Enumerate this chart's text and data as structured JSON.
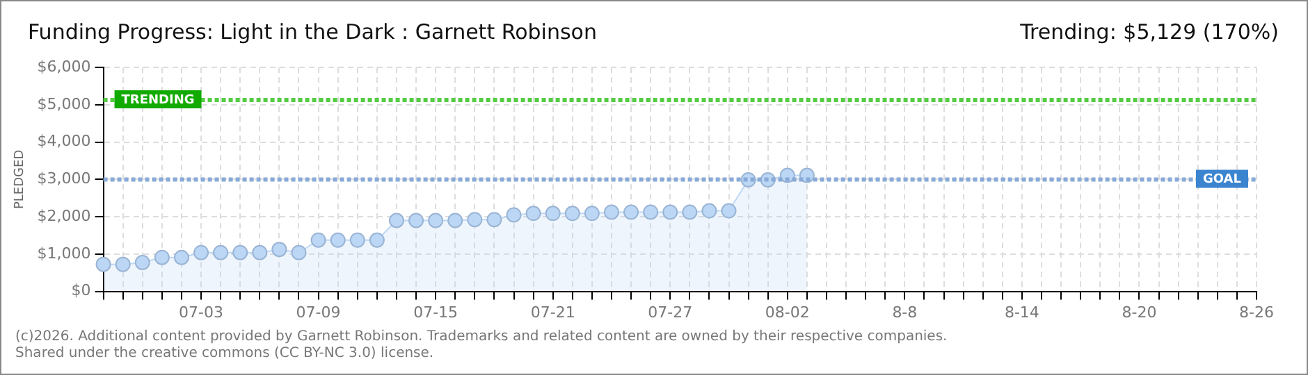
{
  "chart_data": {
    "type": "area",
    "title": "Funding Progress: Light in the Dark : Garnett Robinson",
    "subtitle": "Trending: $5,129 (170%)",
    "ylabel": "PLEDGED",
    "annotations": [
      "(c)2026. Additional content provided by Garnett Robinson. Trademarks and related content are owned by their respective companies.",
      "Shared under the creative commons (CC BY-NC 3.0) license."
    ],
    "categories": [
      null,
      null,
      null,
      null,
      null,
      "07-03",
      null,
      null,
      null,
      null,
      null,
      "07-09",
      null,
      null,
      null,
      null,
      null,
      "07-15",
      null,
      null,
      null,
      null,
      null,
      "07-21",
      null,
      null,
      null,
      null,
      null,
      "07-27",
      null,
      null,
      null,
      null,
      null,
      "08-02",
      null,
      null,
      null,
      null,
      null,
      "8-8",
      null,
      null,
      null,
      null,
      null,
      "8-14",
      null,
      null,
      null,
      null,
      null,
      "8-20",
      null,
      null,
      null,
      null,
      null,
      "8-26"
    ],
    "series": [
      {
        "color": "#bcd7f5",
        "values": [
          725,
          725,
          775,
          910,
          910,
          1040,
          1040,
          1040,
          1040,
          1125,
          1040,
          1375,
          1375,
          1375,
          1375,
          1900,
          1900,
          1900,
          1900,
          1925,
          1925,
          2050,
          2090,
          2090,
          2090,
          2090,
          2125,
          2125,
          2125,
          2125,
          2125,
          2160,
          2160,
          2990,
          2990,
          3110,
          3110,
          null,
          null,
          null,
          null,
          null,
          null,
          null,
          null,
          null,
          null,
          null,
          null,
          null,
          null,
          null,
          null,
          null,
          null,
          null,
          null,
          null,
          null,
          null
        ]
      }
    ],
    "ylim": [
      0,
      6000
    ],
    "yticks": [
      {
        "value": 0,
        "label": "$0"
      },
      {
        "value": 1000,
        "label": "$1,000"
      },
      {
        "value": 2000,
        "label": "$2,000"
      },
      {
        "value": 3000,
        "label": "$3,000"
      },
      {
        "value": 4000,
        "label": "$4,000"
      },
      {
        "value": 5000,
        "label": "$5,000"
      },
      {
        "value": 6000,
        "label": "$6,000"
      }
    ],
    "ref_lines": [
      {
        "axis": "y",
        "value": 5129,
        "label": "TRENDING",
        "color": "#55cc44",
        "line_style": "dotted"
      },
      {
        "axis": "y",
        "value": 3000,
        "label": "GOAL",
        "color": "#88aad8",
        "line_style": "dotted"
      }
    ],
    "grid": true,
    "marker": "circle",
    "legend": false
  }
}
